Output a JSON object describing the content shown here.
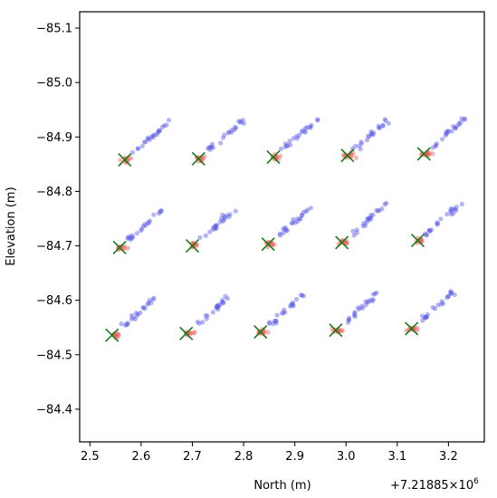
{
  "chart_data": {
    "type": "scatter",
    "xlabel": "North (m)",
    "ylabel": "Elevation (m)",
    "x_offset_label": "+7.21885×10",
    "x_offset_exponent": "6",
    "xlim": [
      2.48,
      3.27
    ],
    "ylim": [
      -85.13,
      -84.34
    ],
    "y_axis_inverted": true,
    "x_ticks": [
      2.5,
      2.6,
      2.7,
      2.8,
      2.9,
      3.0,
      3.1,
      3.2
    ],
    "x_tick_labels": [
      "2.5",
      "2.6",
      "2.7",
      "2.8",
      "2.9",
      "3.0",
      "3.1",
      "3.2"
    ],
    "y_ticks": [
      -85.1,
      -85.0,
      -84.9,
      -84.8,
      -84.7,
      -84.6,
      -84.5,
      -84.4
    ],
    "y_tick_labels": [
      "−85.1",
      "−85.0",
      "−84.9",
      "−84.8",
      "−84.7",
      "−84.6",
      "−84.5",
      "−84.4"
    ],
    "grid": false,
    "colors": {
      "blue": "#5a5ae6",
      "red": "#f06060",
      "marker": "#1a7a1a"
    },
    "clusters": [
      {
        "x": 2.568,
        "y": -84.858
      },
      {
        "x": 2.712,
        "y": -84.86
      },
      {
        "x": 2.858,
        "y": -84.863
      },
      {
        "x": 3.003,
        "y": -84.866
      },
      {
        "x": 3.152,
        "y": -84.869
      },
      {
        "x": 2.558,
        "y": -84.697
      },
      {
        "x": 2.7,
        "y": -84.7
      },
      {
        "x": 2.848,
        "y": -84.703
      },
      {
        "x": 2.992,
        "y": -84.706
      },
      {
        "x": 3.14,
        "y": -84.71
      },
      {
        "x": 2.543,
        "y": -84.536
      },
      {
        "x": 2.688,
        "y": -84.539
      },
      {
        "x": 2.833,
        "y": -84.542
      },
      {
        "x": 2.98,
        "y": -84.545
      },
      {
        "x": 3.128,
        "y": -84.548
      }
    ]
  }
}
